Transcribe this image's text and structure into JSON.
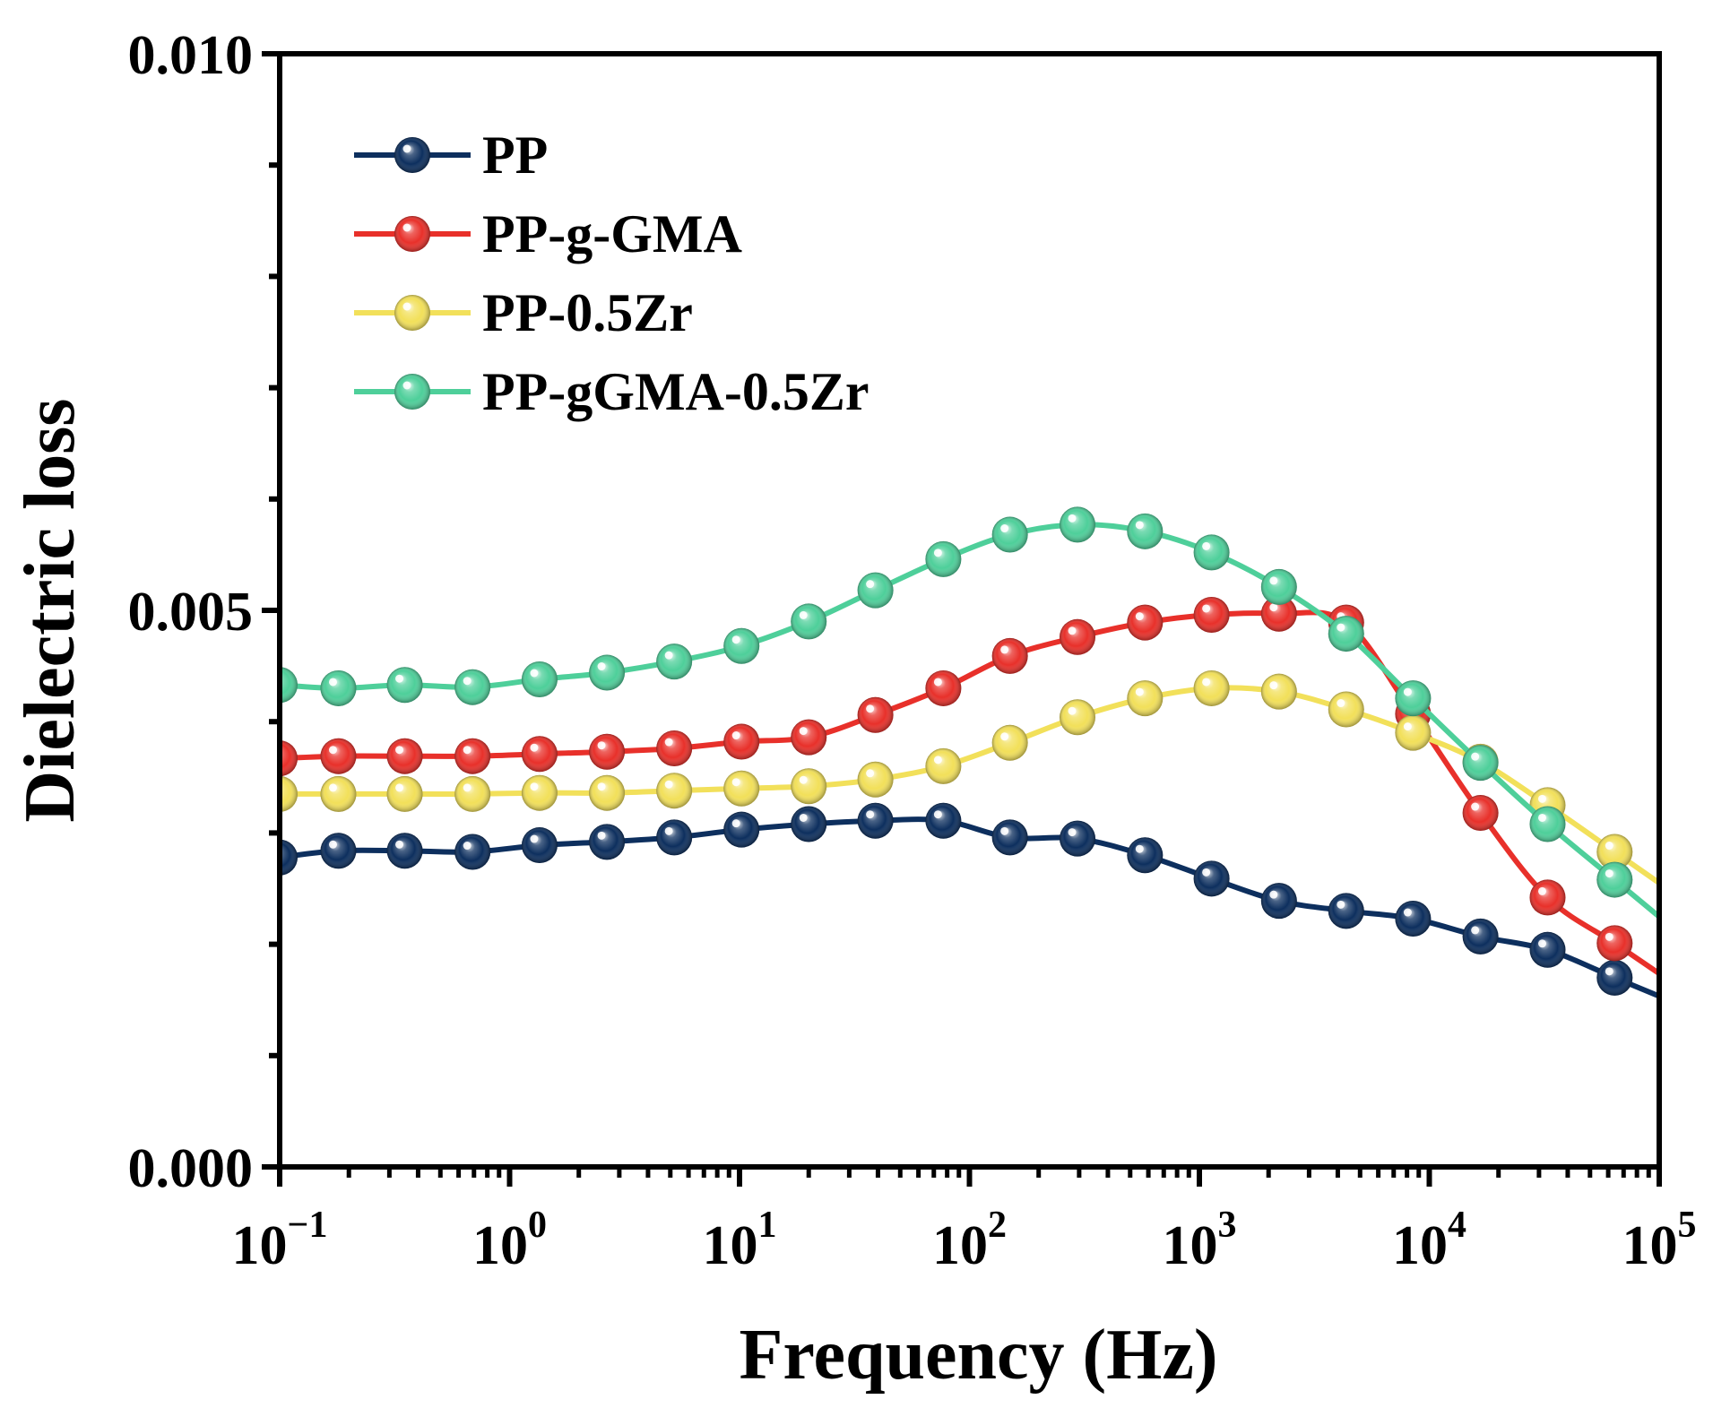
{
  "chart_data": {
    "type": "line",
    "xscale": "log",
    "xlabel": "Frequency (Hz)",
    "ylabel": "Dielectric loss",
    "xlim": [
      0.1,
      100000
    ],
    "ylim": [
      0.0,
      0.01
    ],
    "x_ticks": [
      {
        "value": 0.1,
        "base": "10",
        "exp": "−1"
      },
      {
        "value": 1,
        "base": "10",
        "exp": "0"
      },
      {
        "value": 10,
        "base": "10",
        "exp": "1"
      },
      {
        "value": 100,
        "base": "10",
        "exp": "2"
      },
      {
        "value": 1000,
        "base": "10",
        "exp": "3"
      },
      {
        "value": 10000,
        "base": "10",
        "exp": "4"
      },
      {
        "value": 100000,
        "base": "10",
        "exp": "5"
      }
    ],
    "y_ticks": [
      {
        "value": 0.0,
        "label": "0.000"
      },
      {
        "value": 0.005,
        "label": "0.005"
      },
      {
        "value": 0.01,
        "label": "0.010"
      }
    ],
    "legend_position": "top-left",
    "x": [
      0.1,
      0.18,
      0.35,
      0.69,
      1.35,
      2.65,
      5.2,
      10.2,
      20,
      39,
      77,
      150,
      295,
      580,
      1130,
      2220,
      4350,
      8500,
      16700,
      32700,
      64000
    ],
    "series": [
      {
        "name": "PP",
        "color": "#0d2f5e",
        "values": [
          0.00278,
          0.00284,
          0.00284,
          0.00283,
          0.00289,
          0.00292,
          0.00296,
          0.00303,
          0.00308,
          0.00311,
          0.00311,
          0.00296,
          0.00295,
          0.0028,
          0.00259,
          0.00239,
          0.0023,
          0.00223,
          0.00207,
          0.00195,
          0.0017
        ]
      },
      {
        "name": "PP-g-GMA",
        "color": "#e8302a",
        "values": [
          0.00367,
          0.00369,
          0.00369,
          0.00369,
          0.00371,
          0.00373,
          0.00376,
          0.00382,
          0.00386,
          0.00406,
          0.0043,
          0.00459,
          0.00476,
          0.00489,
          0.00496,
          0.00497,
          0.00489,
          0.00407,
          0.00318,
          0.00242,
          0.00201
        ]
      },
      {
        "name": "PP-0.5Zr",
        "color": "#f2e05a",
        "values": [
          0.00335,
          0.00335,
          0.00335,
          0.00335,
          0.00336,
          0.00336,
          0.00338,
          0.0034,
          0.00342,
          0.00348,
          0.0036,
          0.00381,
          0.00404,
          0.00421,
          0.0043,
          0.00427,
          0.00411,
          0.0039,
          0.00364,
          0.00325,
          0.00283
        ]
      },
      {
        "name": "PP-gGMA-0.5Zr",
        "color": "#4ecf9a",
        "values": [
          0.00433,
          0.0043,
          0.00433,
          0.00431,
          0.00438,
          0.00444,
          0.00454,
          0.00468,
          0.0049,
          0.00518,
          0.00546,
          0.00568,
          0.00577,
          0.00571,
          0.00552,
          0.00521,
          0.00479,
          0.00421,
          0.00363,
          0.00308,
          0.00258
        ]
      }
    ]
  }
}
